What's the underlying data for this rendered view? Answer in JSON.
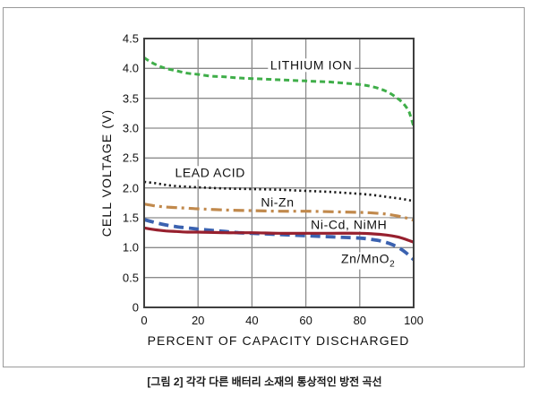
{
  "figure": {
    "caption": "[그림 2] 각각 다른 배터리 소재의 통상적인 방전 곡선"
  },
  "colors": {
    "lithium_ion": "#3fae49",
    "lead_acid": "#1a1a1a",
    "ni_zn": "#c1894c",
    "zn_mno2": "#3b62b0",
    "ni_cd_nimh": "#97202e",
    "gridline": "#8b8b8b",
    "plot_border": "#3f3f3f",
    "frame_border": "#9a9a9a"
  },
  "chart_data": {
    "type": "line",
    "title": "",
    "xlabel": "PERCENT OF CAPACITY DISCHARGED",
    "ylabel": "CELL VOLTAGE (V)",
    "xlim": [
      0,
      100
    ],
    "ylim": [
      0,
      4.5
    ],
    "grid": true,
    "legend_position": "inline-labels",
    "x_tick_labels": [
      "0",
      "20",
      "40",
      "60",
      "80",
      "100"
    ],
    "y_tick_labels": [
      "0",
      "0.5",
      "1.0",
      "1.5",
      "2.0",
      "2.5",
      "3.0",
      "3.5",
      "4.0",
      "4.5"
    ],
    "series": [
      {
        "name": "LITHIUM ION",
        "color": "#3fae49",
        "line_style": "short-dash",
        "width": 3,
        "label_main": "LITHIUM ION",
        "label_sub": "",
        "label_at": [
          62,
          4.05
        ],
        "points": [
          [
            0,
            4.18
          ],
          [
            2,
            4.12
          ],
          [
            5,
            4.05
          ],
          [
            8,
            4.0
          ],
          [
            12,
            3.96
          ],
          [
            16,
            3.92
          ],
          [
            20,
            3.9
          ],
          [
            25,
            3.87
          ],
          [
            30,
            3.86
          ],
          [
            35,
            3.84
          ],
          [
            40,
            3.83
          ],
          [
            45,
            3.82
          ],
          [
            50,
            3.81
          ],
          [
            55,
            3.8
          ],
          [
            60,
            3.79
          ],
          [
            65,
            3.78
          ],
          [
            70,
            3.77
          ],
          [
            75,
            3.75
          ],
          [
            80,
            3.73
          ],
          [
            84,
            3.7
          ],
          [
            88,
            3.65
          ],
          [
            91,
            3.59
          ],
          [
            94,
            3.5
          ],
          [
            96,
            3.42
          ],
          [
            98,
            3.3
          ],
          [
            99,
            3.18
          ],
          [
            100,
            3.03
          ]
        ]
      },
      {
        "name": "LEAD ACID",
        "color": "#1a1a1a",
        "line_style": "dot",
        "width": 2.6,
        "label_main": "LEAD ACID",
        "label_sub": "",
        "label_at": [
          24.5,
          2.25
        ],
        "points": [
          [
            0,
            2.1
          ],
          [
            4,
            2.08
          ],
          [
            8,
            2.05
          ],
          [
            12,
            2.03
          ],
          [
            16,
            2.02
          ],
          [
            20,
            2.01
          ],
          [
            30,
            1.99
          ],
          [
            40,
            1.98
          ],
          [
            50,
            1.97
          ],
          [
            60,
            1.95
          ],
          [
            70,
            1.93
          ],
          [
            80,
            1.9
          ],
          [
            85,
            1.88
          ],
          [
            90,
            1.85
          ],
          [
            95,
            1.82
          ],
          [
            100,
            1.78
          ]
        ]
      },
      {
        "name": "Ni-Zn",
        "color": "#c1894c",
        "line_style": "dash-dot",
        "width": 3.2,
        "label_main": "Ni-Zn",
        "label_sub": "",
        "label_at": [
          49.5,
          1.76
        ],
        "points": [
          [
            0,
            1.73
          ],
          [
            4,
            1.7
          ],
          [
            8,
            1.68
          ],
          [
            12,
            1.67
          ],
          [
            16,
            1.66
          ],
          [
            20,
            1.65
          ],
          [
            30,
            1.63
          ],
          [
            40,
            1.62
          ],
          [
            50,
            1.61
          ],
          [
            60,
            1.61
          ],
          [
            70,
            1.6
          ],
          [
            80,
            1.59
          ],
          [
            85,
            1.58
          ],
          [
            90,
            1.56
          ],
          [
            94,
            1.53
          ],
          [
            97,
            1.5
          ],
          [
            100,
            1.46
          ]
        ]
      },
      {
        "name": "Zn/MnO2",
        "color": "#3b62b0",
        "line_style": "long-dash",
        "width": 3.8,
        "label_main": "Zn/MnO",
        "label_sub": "2",
        "label_at": [
          83,
          0.78
        ],
        "points": [
          [
            0,
            1.47
          ],
          [
            4,
            1.42
          ],
          [
            8,
            1.38
          ],
          [
            12,
            1.35
          ],
          [
            16,
            1.33
          ],
          [
            20,
            1.31
          ],
          [
            25,
            1.29
          ],
          [
            30,
            1.27
          ],
          [
            35,
            1.25
          ],
          [
            40,
            1.24
          ],
          [
            45,
            1.23
          ],
          [
            50,
            1.22
          ],
          [
            55,
            1.21
          ],
          [
            60,
            1.2
          ],
          [
            65,
            1.19
          ],
          [
            70,
            1.18
          ],
          [
            75,
            1.17
          ],
          [
            80,
            1.16
          ],
          [
            84,
            1.14
          ],
          [
            88,
            1.11
          ],
          [
            91,
            1.07
          ],
          [
            94,
            1.01
          ],
          [
            97,
            0.92
          ],
          [
            100,
            0.8
          ]
        ]
      },
      {
        "name": "Ni-Cd, NiMH",
        "color": "#97202e",
        "line_style": "solid",
        "width": 3.2,
        "label_main": "Ni-Cd, NiMH",
        "label_sub": "",
        "label_at": [
          76,
          1.38
        ],
        "points": [
          [
            0,
            1.33
          ],
          [
            4,
            1.3
          ],
          [
            8,
            1.28
          ],
          [
            12,
            1.27
          ],
          [
            16,
            1.26
          ],
          [
            20,
            1.26
          ],
          [
            30,
            1.25
          ],
          [
            40,
            1.25
          ],
          [
            50,
            1.24
          ],
          [
            60,
            1.24
          ],
          [
            70,
            1.24
          ],
          [
            80,
            1.24
          ],
          [
            85,
            1.23
          ],
          [
            90,
            1.21
          ],
          [
            94,
            1.18
          ],
          [
            97,
            1.14
          ],
          [
            100,
            1.09
          ]
        ]
      }
    ]
  }
}
